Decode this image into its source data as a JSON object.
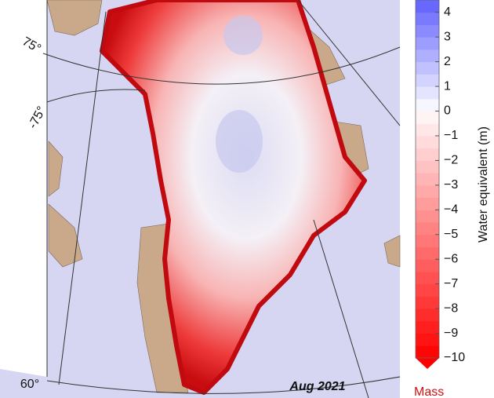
{
  "map": {
    "labels": {
      "lat_75": "75°",
      "lat_neg_75": "-75°",
      "lat_60": "60°",
      "date": "Aug 2021"
    },
    "colorbar": {
      "label": "Water equivalent (m)",
      "lim": [
        -10,
        4.5
      ],
      "ticks": [
        4,
        3,
        2,
        1,
        0,
        {
          "value": -1,
          "label": "−1"
        },
        {
          "value": -2,
          "label": "−2"
        },
        {
          "value": -3,
          "label": "−3"
        },
        {
          "value": -4,
          "label": "−4"
        },
        {
          "value": -5,
          "label": "−5"
        },
        {
          "value": -6,
          "label": "−6"
        },
        {
          "value": -7,
          "label": "−7"
        },
        {
          "value": -8,
          "label": "−8"
        },
        {
          "value": -9,
          "label": "−9"
        },
        {
          "value": -10,
          "label": "−10"
        }
      ]
    },
    "footer": "Mass"
  }
}
